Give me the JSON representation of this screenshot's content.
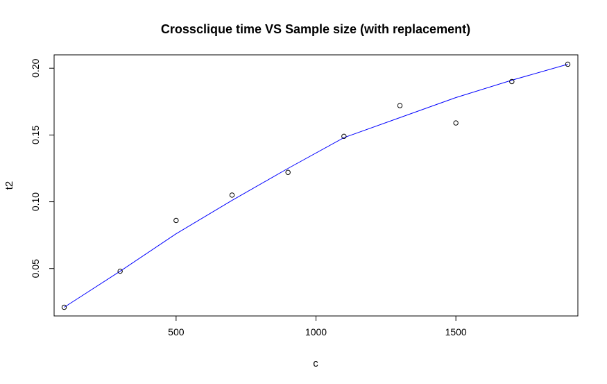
{
  "chart_data": {
    "type": "scatter",
    "title": "Crossclique time VS Sample size (with replacement)",
    "xlabel": "c",
    "ylabel": "t2",
    "xlim": [
      64,
      1936
    ],
    "ylim": [
      0.0145,
      0.21
    ],
    "x_ticks": [
      500,
      1000,
      1500
    ],
    "y_ticks": [
      0.05,
      0.1,
      0.15,
      0.2
    ],
    "x_tick_labels": [
      "500",
      "1000",
      "1500"
    ],
    "y_tick_labels": [
      "0.05",
      "0.10",
      "0.15",
      "0.20"
    ],
    "grid": false,
    "legend": "none",
    "series": [
      {
        "kind": "points",
        "marker": "open-circle",
        "color": "#000000",
        "x": [
          100,
          300,
          500,
          700,
          900,
          1100,
          1300,
          1500,
          1700,
          1900
        ],
        "y": [
          0.021,
          0.048,
          0.086,
          0.105,
          0.122,
          0.149,
          0.172,
          0.159,
          0.19,
          0.203
        ]
      },
      {
        "kind": "smooth-line",
        "color": "#0000ff",
        "x": [
          100,
          300,
          500,
          700,
          900,
          1100,
          1300,
          1500,
          1700,
          1900
        ],
        "y": [
          0.021,
          0.048,
          0.076,
          0.101,
          0.125,
          0.148,
          0.163,
          0.178,
          0.191,
          0.203
        ]
      }
    ]
  }
}
